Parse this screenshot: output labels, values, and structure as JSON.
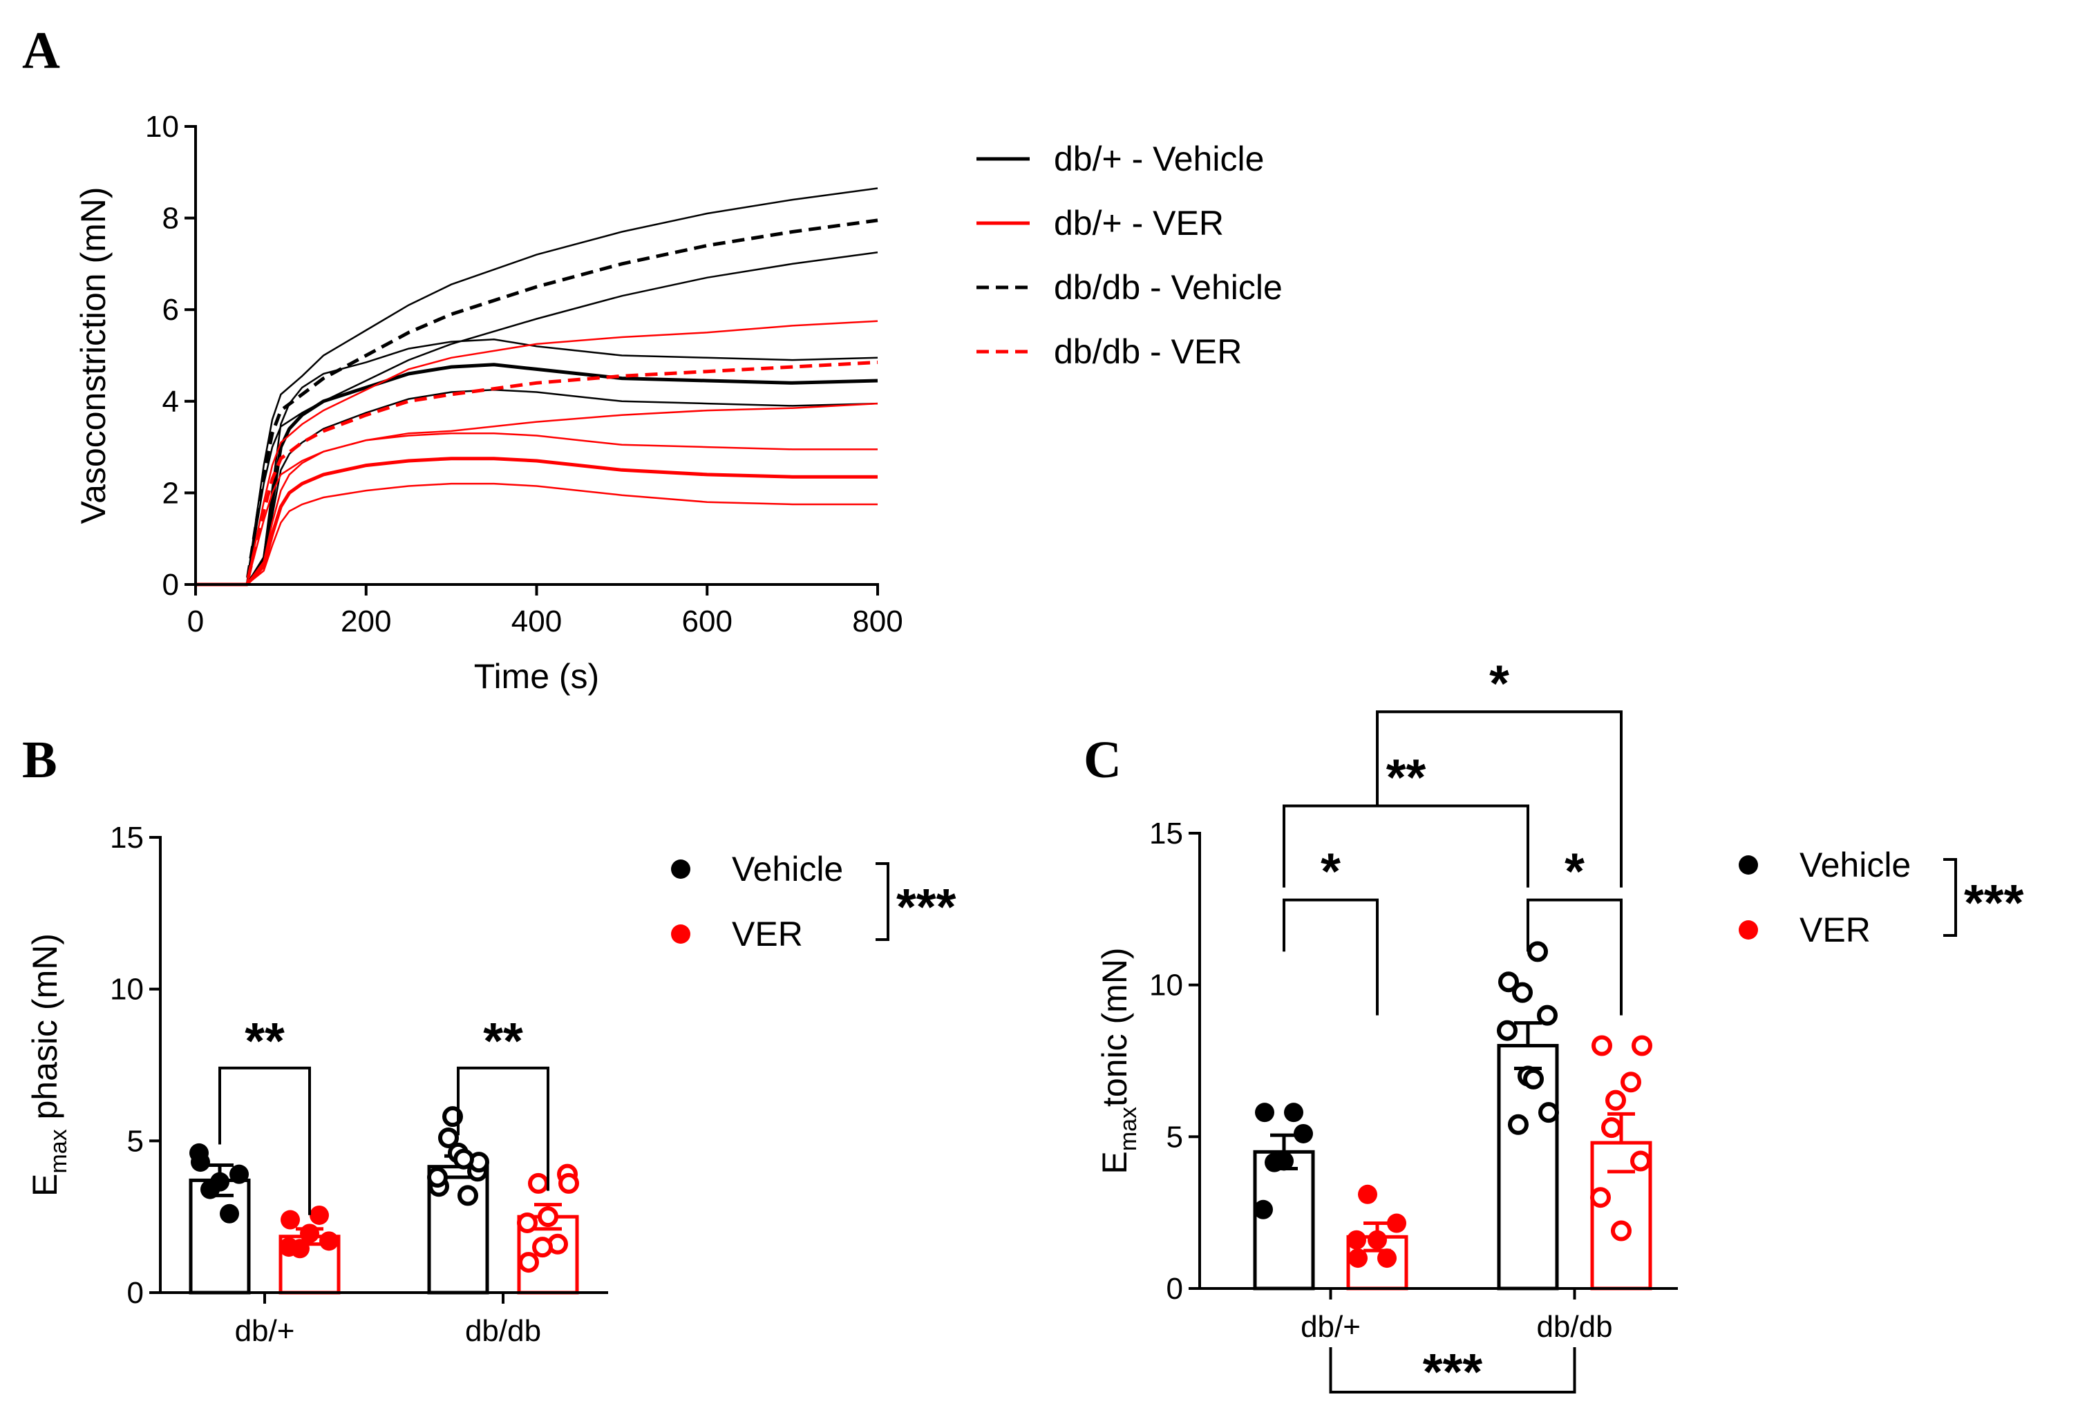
{
  "panels": {
    "A": {
      "letter": "A"
    },
    "B": {
      "letter": "B"
    },
    "C": {
      "letter": "C"
    }
  },
  "colors": {
    "vehicle": "#000000",
    "ver": "#ff0000"
  },
  "chart_data": [
    {
      "id": "A",
      "type": "line",
      "xlabel": "Time (s)",
      "ylabel": "Vasoconstriction (mN)",
      "xlim": [
        0,
        800
      ],
      "ylim": [
        0,
        10
      ],
      "xticks": [
        0,
        200,
        400,
        600,
        800
      ],
      "yticks": [
        0,
        2,
        4,
        6,
        8,
        10
      ],
      "grid": false,
      "legend_position": "right",
      "legend": [
        {
          "label": "db/+ - Vehicle",
          "color": "#000000",
          "dash": false
        },
        {
          "label": "db/+ - VER",
          "color": "#ff0000",
          "dash": false
        },
        {
          "label": "db/db  - Vehicle",
          "color": "#000000",
          "dash": true
        },
        {
          "label": "db/db - VER",
          "color": "#ff0000",
          "dash": true
        }
      ],
      "series": [
        {
          "name": "db/+ - Vehicle",
          "color": "#000000",
          "dash": false,
          "width": 5,
          "x": [
            0,
            60,
            80,
            90,
            100,
            110,
            125,
            150,
            200,
            250,
            300,
            350,
            400,
            450,
            500,
            600,
            700,
            800
          ],
          "mean": [
            0,
            0,
            0.5,
            1.8,
            3.0,
            3.4,
            3.7,
            4.0,
            4.3,
            4.6,
            4.75,
            4.8,
            4.7,
            4.6,
            4.5,
            4.45,
            4.4,
            4.45
          ],
          "sem": [
            0,
            0,
            0.1,
            0.3,
            0.5,
            0.55,
            0.6,
            0.6,
            0.55,
            0.55,
            0.55,
            0.55,
            0.5,
            0.5,
            0.5,
            0.5,
            0.5,
            0.5
          ]
        },
        {
          "name": "db/+ - VER",
          "color": "#ff0000",
          "dash": false,
          "width": 5,
          "x": [
            0,
            60,
            80,
            90,
            100,
            110,
            125,
            150,
            200,
            250,
            300,
            350,
            400,
            450,
            500,
            600,
            700,
            800
          ],
          "mean": [
            0,
            0,
            0.4,
            1.1,
            1.7,
            2.0,
            2.2,
            2.4,
            2.6,
            2.7,
            2.75,
            2.75,
            2.7,
            2.6,
            2.5,
            2.4,
            2.35,
            2.35
          ],
          "sem": [
            0,
            0,
            0.1,
            0.25,
            0.35,
            0.4,
            0.45,
            0.5,
            0.55,
            0.55,
            0.55,
            0.55,
            0.55,
            0.55,
            0.55,
            0.6,
            0.6,
            0.6
          ]
        },
        {
          "name": "db/db  - Vehicle",
          "color": "#000000",
          "dash": true,
          "width": 5,
          "x": [
            0,
            60,
            70,
            80,
            90,
            100,
            125,
            150,
            200,
            250,
            300,
            400,
            500,
            600,
            700,
            800
          ],
          "mean": [
            0,
            0,
            1.2,
            2.4,
            3.3,
            3.8,
            4.15,
            4.5,
            5.0,
            5.5,
            5.9,
            6.5,
            7.0,
            7.4,
            7.7,
            7.95
          ],
          "sem": [
            0,
            0,
            0.1,
            0.2,
            0.3,
            0.35,
            0.4,
            0.5,
            0.55,
            0.6,
            0.65,
            0.7,
            0.7,
            0.7,
            0.7,
            0.7
          ]
        },
        {
          "name": "db/db - VER",
          "color": "#ff0000",
          "dash": true,
          "width": 5,
          "x": [
            0,
            60,
            70,
            80,
            90,
            100,
            125,
            150,
            200,
            250,
            300,
            400,
            500,
            600,
            700,
            800
          ],
          "mean": [
            0,
            0,
            0.8,
            1.6,
            2.3,
            2.75,
            3.1,
            3.35,
            3.7,
            4.0,
            4.15,
            4.4,
            4.55,
            4.65,
            4.75,
            4.85
          ],
          "sem": [
            0,
            0,
            0.1,
            0.2,
            0.3,
            0.35,
            0.4,
            0.45,
            0.55,
            0.7,
            0.8,
            0.85,
            0.85,
            0.85,
            0.9,
            0.9
          ]
        }
      ]
    },
    {
      "id": "B",
      "type": "bar",
      "ylabel_main": "E",
      "ylabel_sub": "max",
      "ylabel_rest": " phasic  (mN)",
      "ylim": [
        0,
        15
      ],
      "yticks": [
        0,
        5,
        10,
        15
      ],
      "categories": [
        "db/+",
        "db/db"
      ],
      "legend": [
        {
          "label": "Vehicle",
          "color": "#000000"
        },
        {
          "label": "VER",
          "color": "#ff0000"
        }
      ],
      "legend_sig": "***",
      "series": [
        {
          "name": "Vehicle",
          "color": "#000000",
          "values": [
            3.7,
            4.15
          ],
          "sem": [
            0.5,
            0.35
          ],
          "points": [
            [
              4.3,
              3.9,
              3.65,
              3.4,
              2.6,
              4.6
            ],
            [
              3.5,
              4.0,
              4.6,
              5.1,
              3.2,
              3.8,
              4.3,
              5.8,
              4.4
            ]
          ],
          "hollow": [
            false,
            true
          ]
        },
        {
          "name": "VER",
          "color": "#ff0000",
          "values": [
            1.85,
            2.5
          ],
          "sem": [
            0.25,
            0.4
          ],
          "points": [
            [
              2.4,
              1.7,
              1.95,
              1.45,
              2.55,
              1.5
            ],
            [
              1.0,
              3.9,
              2.5,
              3.6,
              1.6,
              2.3,
              3.6,
              1.5
            ]
          ],
          "hollow": [
            false,
            true
          ]
        }
      ],
      "comparisons": [
        {
          "label": "**",
          "from": [
            0,
            0
          ],
          "to": [
            0,
            1
          ]
        },
        {
          "label": "**",
          "from": [
            1,
            0
          ],
          "to": [
            1,
            1
          ]
        }
      ]
    },
    {
      "id": "C",
      "type": "bar",
      "ylabel_main": "E",
      "ylabel_sub": "max",
      "ylabel_rest": "tonic  (mN)",
      "ylim": [
        0,
        15
      ],
      "yticks": [
        0,
        5,
        10,
        15
      ],
      "categories": [
        "db/+",
        "db/db"
      ],
      "legend": [
        {
          "label": "Vehicle",
          "color": "#000000"
        },
        {
          "label": "VER",
          "color": "#ff0000"
        }
      ],
      "legend_sig": "***",
      "series": [
        {
          "name": "Vehicle",
          "color": "#000000",
          "values": [
            4.5,
            8.0
          ],
          "sem": [
            0.55,
            0.75
          ],
          "points": [
            [
              5.8,
              5.1,
              4.2,
              4.15,
              5.8,
              2.6
            ],
            [
              10.1,
              9.0,
              7.0,
              5.4,
              11.1,
              8.5,
              5.8,
              9.75,
              6.9
            ]
          ],
          "hollow": [
            false,
            true
          ]
        },
        {
          "name": "VER",
          "color": "#ff0000",
          "values": [
            1.7,
            4.8
          ],
          "sem": [
            0.45,
            0.95
          ],
          "points": [
            [
              1.0,
              2.15,
              1.6,
              3.1,
              1.0,
              1.6
            ],
            [
              8.0,
              4.2,
              1.9,
              5.3,
              6.8,
              3.0,
              8.0,
              6.2
            ]
          ],
          "hollow": [
            false,
            true
          ]
        }
      ],
      "comparisons": [
        {
          "label": "*",
          "from": [
            0,
            0
          ],
          "to": [
            0,
            1
          ],
          "level": 0
        },
        {
          "label": "*",
          "from": [
            1,
            0
          ],
          "to": [
            1,
            1
          ],
          "level": 0
        },
        {
          "label": "**",
          "from": [
            0,
            0
          ],
          "to": [
            1,
            0
          ],
          "level": 1
        },
        {
          "label": "*",
          "from": [
            0,
            1
          ],
          "to": [
            1,
            1
          ],
          "level": 2
        }
      ],
      "bottom_comparison": {
        "label": "***"
      }
    }
  ]
}
